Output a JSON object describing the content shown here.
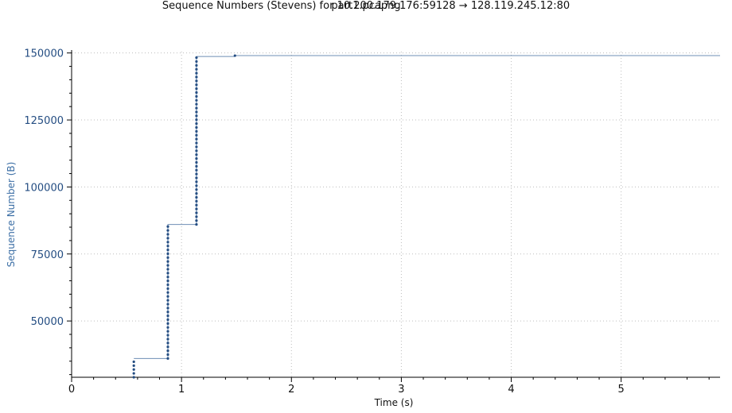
{
  "chart_data": {
    "type": "scatter",
    "title": "Sequence Numbers (Stevens) for 10.200.179.176:59128 → 128.119.245.12:80",
    "subtitle": "part1.pcapng",
    "xlabel": "Time (s)",
    "ylabel": "Sequence Number (B)",
    "xlim": [
      0,
      5.9
    ],
    "ylim": [
      29000,
      150500
    ],
    "x_ticks": [
      0,
      1,
      2,
      3,
      4,
      5
    ],
    "y_ticks": [
      50000,
      75000,
      100000,
      125000,
      150000
    ],
    "x_tick_labels": [
      "0",
      "1",
      "2",
      "3",
      "4",
      "5"
    ],
    "y_tick_labels": [
      "50000",
      "75000",
      "100000",
      "125000",
      "150000"
    ],
    "grid": true,
    "colors": {
      "points": "#244d82",
      "step_line": "#6f8fb5",
      "grid": "#bdbdbd",
      "y_tick_text": "#244d82",
      "ylabel_text": "#3b6ea5"
    },
    "series": [
      {
        "bursts": [
          {
            "time": 0.566,
            "seq_start": 29000,
            "seq_end": 36000,
            "segment_bytes": 1448
          },
          {
            "time": 0.876,
            "seq_start": 36000,
            "seq_end": 86000,
            "segment_bytes": 1448
          },
          {
            "time": 1.136,
            "seq_start": 86000,
            "seq_end": 148700,
            "segment_bytes": 1448
          },
          {
            "time": 1.486,
            "seq_start": 149000,
            "seq_end": 149000,
            "segment_bytes": 1448
          }
        ],
        "step_line": [
          [
            0.566,
            36000
          ],
          [
            0.876,
            36000
          ],
          [
            0.876,
            86000
          ],
          [
            1.136,
            86000
          ],
          [
            1.136,
            148700
          ],
          [
            1.486,
            148700
          ],
          [
            1.486,
            149000
          ],
          [
            5.9,
            149000
          ]
        ]
      }
    ]
  }
}
